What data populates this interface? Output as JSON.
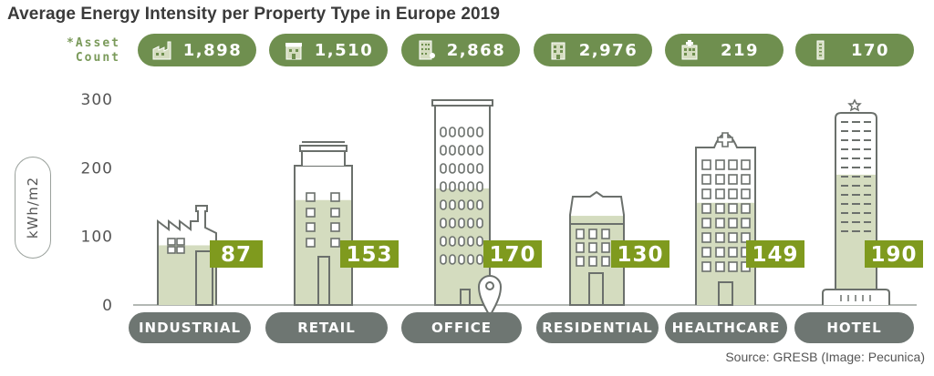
{
  "title": "Average Energy Intensity per Property Type in Europe 2019",
  "asset_count_label_line1": "*Asset",
  "asset_count_label_line2": "Count",
  "source": "Source: GRESB (Image: Pecunica)",
  "colors": {
    "pill_bg": "#6f8f4f",
    "value_box": "#7f9a1e",
    "fill": "#d4dcbf",
    "outline": "#6b706c",
    "category_bg": "#6e7672"
  },
  "asset_counts": [
    {
      "category": "INDUSTRIAL",
      "count": "1,898",
      "icon": "factory-icon"
    },
    {
      "category": "RETAIL",
      "count": "1,510",
      "icon": "shop-icon"
    },
    {
      "category": "OFFICE",
      "count": "2,868",
      "icon": "office-building-icon"
    },
    {
      "category": "RESIDENTIAL",
      "count": "2,976",
      "icon": "apartment-icon"
    },
    {
      "category": "HEALTHCARE",
      "count": "219",
      "icon": "hospital-icon"
    },
    {
      "category": "HOTEL",
      "count": "170",
      "icon": "hotel-tower-icon"
    }
  ],
  "chart_data": {
    "type": "bar",
    "title": "Average Energy Intensity per Property Type in Europe 2019",
    "ylabel": "kWh/m2",
    "categories": [
      "INDUSTRIAL",
      "RETAIL",
      "OFFICE",
      "RESIDENTIAL",
      "HEALTHCARE",
      "HOTEL"
    ],
    "values": [
      87,
      153,
      170,
      130,
      149,
      190
    ],
    "ylim": [
      0,
      300
    ],
    "yticks": [
      0,
      100,
      200,
      300
    ]
  }
}
